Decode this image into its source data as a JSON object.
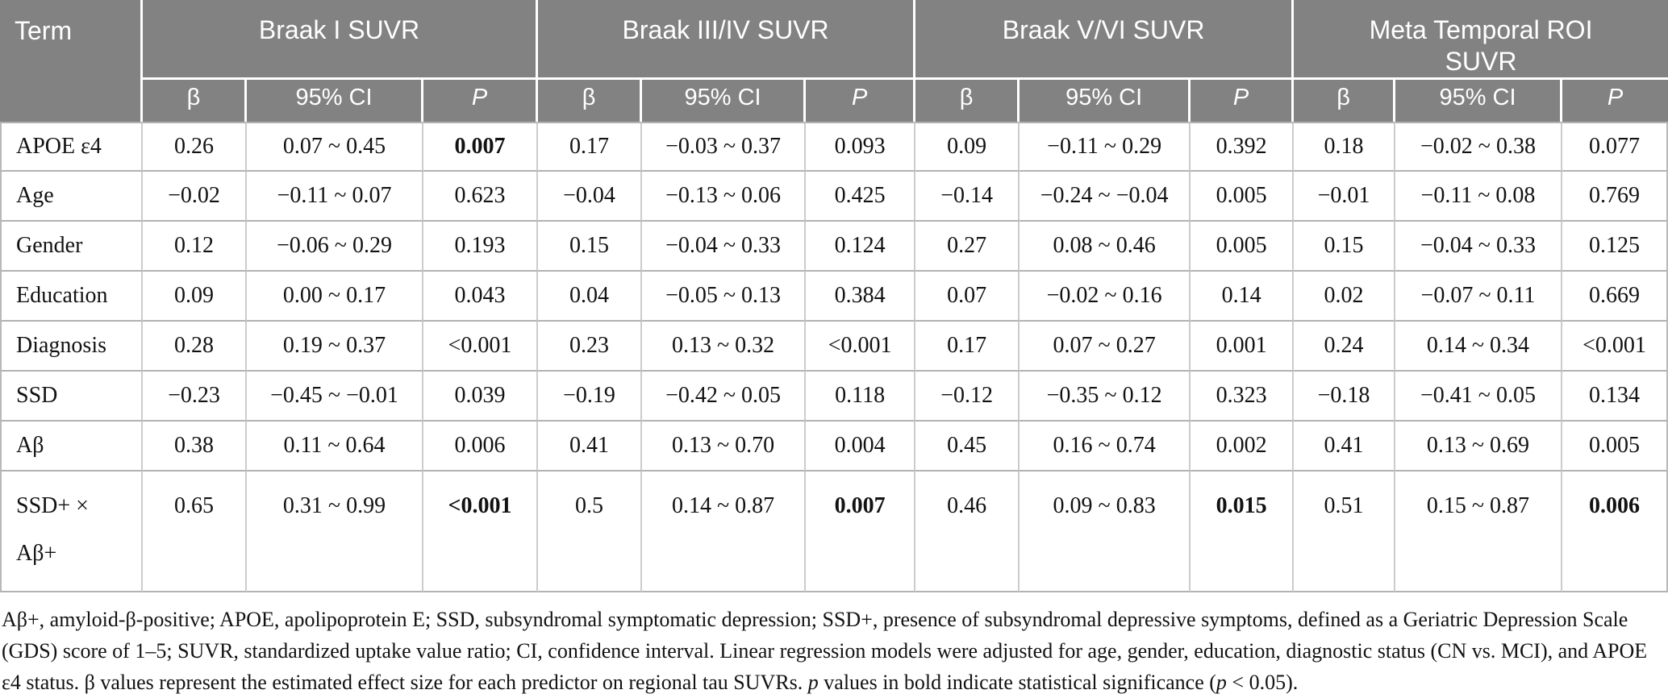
{
  "colors": {
    "header_bg": "#828282",
    "header_fg": "#ffffff",
    "body_text": "#121212",
    "column_border": "#cccccc",
    "row_border": "#b2b2b2"
  },
  "table": {
    "term_header": "Term",
    "groups": [
      {
        "label": "Braak I SUVR"
      },
      {
        "label": "Braak III/IV SUVR"
      },
      {
        "label": "Braak V/VI SUVR"
      },
      {
        "label": "Meta Temporal ROI SUVR"
      }
    ],
    "sub_headers": [
      "β",
      "95% CI",
      "P"
    ],
    "rows": [
      {
        "term": "APOE ε4",
        "cells": [
          {
            "beta": "0.26",
            "ci": "0.07 ~ 0.45",
            "p": "0.007",
            "p_bold": true
          },
          {
            "beta": "0.17",
            "ci": "−0.03 ~ 0.37",
            "p": "0.093",
            "p_bold": false
          },
          {
            "beta": "0.09",
            "ci": "−0.11 ~ 0.29",
            "p": "0.392",
            "p_bold": false
          },
          {
            "beta": "0.18",
            "ci": "−0.02 ~ 0.38",
            "p": "0.077",
            "p_bold": false
          }
        ]
      },
      {
        "term": "Age",
        "cells": [
          {
            "beta": "−0.02",
            "ci": "−0.11 ~ 0.07",
            "p": "0.623",
            "p_bold": false
          },
          {
            "beta": "−0.04",
            "ci": "−0.13 ~ 0.06",
            "p": "0.425",
            "p_bold": false
          },
          {
            "beta": "−0.14",
            "ci": "−0.24 ~ −0.04",
            "p": "0.005",
            "p_bold": false
          },
          {
            "beta": "−0.01",
            "ci": "−0.11 ~ 0.08",
            "p": "0.769",
            "p_bold": false
          }
        ]
      },
      {
        "term": "Gender",
        "cells": [
          {
            "beta": "0.12",
            "ci": "−0.06 ~ 0.29",
            "p": "0.193",
            "p_bold": false
          },
          {
            "beta": "0.15",
            "ci": "−0.04 ~ 0.33",
            "p": "0.124",
            "p_bold": false
          },
          {
            "beta": "0.27",
            "ci": "0.08 ~ 0.46",
            "p": "0.005",
            "p_bold": false
          },
          {
            "beta": "0.15",
            "ci": "−0.04 ~ 0.33",
            "p": "0.125",
            "p_bold": false
          }
        ]
      },
      {
        "term": "Education",
        "cells": [
          {
            "beta": "0.09",
            "ci": "0.00 ~ 0.17",
            "p": "0.043",
            "p_bold": false
          },
          {
            "beta": "0.04",
            "ci": "−0.05 ~ 0.13",
            "p": "0.384",
            "p_bold": false
          },
          {
            "beta": "0.07",
            "ci": "−0.02 ~ 0.16",
            "p": "0.14",
            "p_bold": false
          },
          {
            "beta": "0.02",
            "ci": "−0.07 ~ 0.11",
            "p": "0.669",
            "p_bold": false
          }
        ]
      },
      {
        "term": "Diagnosis",
        "cells": [
          {
            "beta": "0.28",
            "ci": "0.19 ~ 0.37",
            "p": "<0.001",
            "p_bold": false
          },
          {
            "beta": "0.23",
            "ci": "0.13 ~ 0.32",
            "p": "<0.001",
            "p_bold": false
          },
          {
            "beta": "0.17",
            "ci": "0.07 ~ 0.27",
            "p": "0.001",
            "p_bold": false
          },
          {
            "beta": "0.24",
            "ci": "0.14 ~ 0.34",
            "p": "<0.001",
            "p_bold": false
          }
        ]
      },
      {
        "term": "SSD",
        "cells": [
          {
            "beta": "−0.23",
            "ci": "−0.45 ~ −0.01",
            "p": "0.039",
            "p_bold": false
          },
          {
            "beta": "−0.19",
            "ci": "−0.42 ~ 0.05",
            "p": "0.118",
            "p_bold": false
          },
          {
            "beta": "−0.12",
            "ci": "−0.35 ~ 0.12",
            "p": "0.323",
            "p_bold": false
          },
          {
            "beta": "−0.18",
            "ci": "−0.41 ~ 0.05",
            "p": "0.134",
            "p_bold": false
          }
        ]
      },
      {
        "term": "Aβ",
        "cells": [
          {
            "beta": "0.38",
            "ci": "0.11 ~ 0.64",
            "p": "0.006",
            "p_bold": false
          },
          {
            "beta": "0.41",
            "ci": "0.13 ~ 0.70",
            "p": "0.004",
            "p_bold": false
          },
          {
            "beta": "0.45",
            "ci": "0.16 ~ 0.74",
            "p": "0.002",
            "p_bold": false
          },
          {
            "beta": "0.41",
            "ci": "0.13 ~ 0.69",
            "p": "0.005",
            "p_bold": false
          }
        ]
      },
      {
        "term": "SSD+ ×\nAβ+",
        "tall": true,
        "cells": [
          {
            "beta": "0.65",
            "ci": "0.31 ~ 0.99",
            "p": "<0.001",
            "p_bold": true
          },
          {
            "beta": "0.5",
            "ci": "0.14 ~ 0.87",
            "p": "0.007",
            "p_bold": true
          },
          {
            "beta": "0.46",
            "ci": "0.09 ~ 0.83",
            "p": "0.015",
            "p_bold": true
          },
          {
            "beta": "0.51",
            "ci": "0.15 ~ 0.87",
            "p": "0.006",
            "p_bold": true
          }
        ]
      }
    ]
  },
  "footnote": {
    "segments": [
      {
        "text": "Aβ+, amyloid-β-positive; APOE, apolipoprotein E; SSD, subsyndromal symptomatic depression; SSD+, presence of subsyndromal depressive symptoms, defined as a Geriatric Depression Scale (GDS) score of 1–5; SUVR, standardized uptake value ratio; CI, confidence interval. Linear regression models were adjusted for age, gender, education, diagnostic status (CN vs. MCI), and APOE ε4 status. β values represent the estimated effect size for each predictor on regional tau SUVRs. ",
        "italic": false
      },
      {
        "text": "p",
        "italic": true
      },
      {
        "text": " values in bold indicate statistical significance (",
        "italic": false
      },
      {
        "text": "p",
        "italic": true
      },
      {
        "text": " < 0.05).",
        "italic": false
      }
    ]
  }
}
